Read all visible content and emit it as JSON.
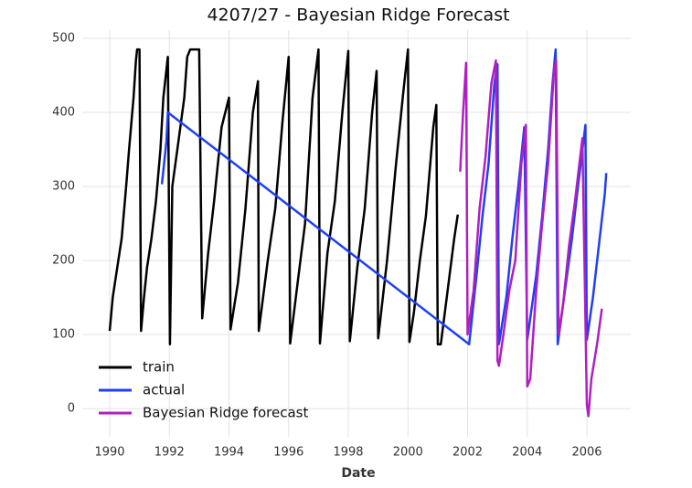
{
  "chart_data": {
    "type": "line",
    "title": "4207/27 - Bayesian Ridge Forecast",
    "xlabel": "Date",
    "xlim": [
      1989.08,
      2007.47
    ],
    "ylim": [
      -38,
      511
    ],
    "xticks": [
      1990,
      1992,
      1994,
      1996,
      1998,
      2000,
      2002,
      2004,
      2006
    ],
    "yticks": [
      0,
      100,
      200,
      300,
      400,
      500
    ],
    "grid": true,
    "legend": "lower left",
    "series": [
      {
        "name": "train",
        "color": "#000000",
        "x": [
          1990.0,
          1990.1,
          1990.25,
          1990.4,
          1990.55,
          1990.65,
          1990.8,
          1990.88,
          1990.92,
          1991.0,
          1991.05,
          1991.15,
          1991.25,
          1991.4,
          1991.55,
          1991.7,
          1991.8,
          1991.95,
          1992.02,
          1992.1,
          1992.3,
          1992.5,
          1992.6,
          1992.7,
          1993.0,
          1993.1,
          1993.3,
          1993.5,
          1993.75,
          1994.0,
          1994.05,
          1994.3,
          1994.55,
          1994.8,
          1994.97,
          1995.0,
          1995.3,
          1995.55,
          1995.8,
          1996.0,
          1996.05,
          1996.3,
          1996.55,
          1996.8,
          1997.0,
          1997.05,
          1997.3,
          1997.55,
          1997.8,
          1998.0,
          1998.05,
          1998.3,
          1998.55,
          1998.8,
          1998.95,
          1999.0,
          1999.3,
          1999.6,
          1999.85,
          2000.0,
          2000.05,
          2000.2,
          2000.4,
          2000.6,
          2000.85,
          2000.95,
          2001.0,
          2001.1,
          2001.3,
          2001.55,
          2001.67
        ],
        "values": [
          105,
          150,
          190,
          230,
          300,
          350,
          420,
          470,
          485,
          485,
          105,
          150,
          190,
          230,
          280,
          350,
          420,
          475,
          87,
          300,
          360,
          420,
          475,
          485,
          485,
          122,
          210,
          280,
          380,
          420,
          107,
          170,
          270,
          400,
          442,
          105,
          200,
          270,
          390,
          475,
          88,
          170,
          250,
          420,
          485,
          88,
          210,
          280,
          400,
          483,
          91,
          190,
          270,
          400,
          456,
          95,
          200,
          330,
          430,
          485,
          90,
          130,
          200,
          260,
          380,
          410,
          87,
          87,
          150,
          230,
          262
        ]
      },
      {
        "name": "actual",
        "color": "#1f3ff5",
        "x": [
          1991.75,
          1991.9,
          1991.95,
          2002.05,
          2002.3,
          2002.5,
          2002.7,
          2002.9,
          2003.0,
          2003.05,
          2003.3,
          2003.5,
          2003.7,
          2003.9,
          2004.0,
          2004.3,
          2004.5,
          2004.7,
          2004.85,
          2004.95,
          2005.02,
          2005.3,
          2005.5,
          2005.7,
          2005.95,
          2006.0,
          2006.2,
          2006.4,
          2006.6,
          2006.65
        ],
        "values": [
          303,
          360,
          400,
          87,
          180,
          260,
          330,
          440,
          465,
          87,
          150,
          230,
          300,
          380,
          93,
          180,
          260,
          350,
          440,
          485,
          87,
          170,
          230,
          300,
          383,
          93,
          150,
          220,
          290,
          318
        ]
      },
      {
        "name": "Bayesian Ridge forecast",
        "color": "#b01fc0",
        "x": [
          2001.75,
          2001.85,
          2001.95,
          2002.0,
          2002.2,
          2002.4,
          2002.6,
          2002.8,
          2002.95,
          2003.0,
          2003.05,
          2003.2,
          2003.4,
          2003.6,
          2003.8,
          2003.95,
          2004.0,
          2004.1,
          2004.3,
          2004.5,
          2004.7,
          2004.9,
          2004.97,
          2005.05,
          2005.2,
          2005.4,
          2005.6,
          2005.85,
          2006.0,
          2006.05,
          2006.15,
          2006.35,
          2006.5
        ],
        "values": [
          320,
          400,
          467,
          100,
          160,
          270,
          340,
          440,
          470,
          65,
          58,
          100,
          160,
          200,
          330,
          383,
          30,
          40,
          160,
          250,
          330,
          460,
          470,
          100,
          140,
          220,
          280,
          365,
          5,
          -10,
          40,
          90,
          135
        ]
      }
    ]
  }
}
